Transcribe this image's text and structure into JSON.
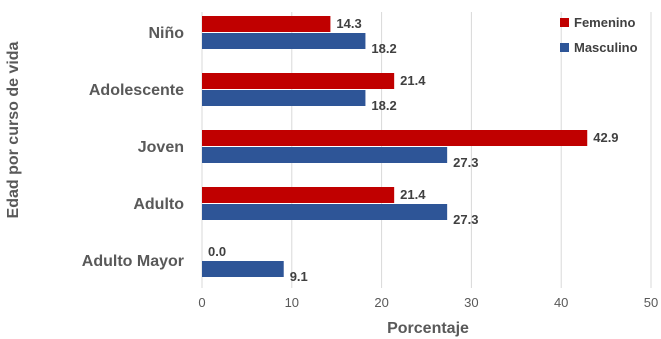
{
  "chart_data": {
    "type": "bar",
    "orientation": "horizontal",
    "categories": [
      "Niño",
      "Adolescente",
      "Joven",
      "Adulto",
      "Adulto Mayor"
    ],
    "series": [
      {
        "name": "Femenino",
        "color": "#C00000",
        "values": [
          14.3,
          21.4,
          42.9,
          21.4,
          0.0
        ]
      },
      {
        "name": "Masculino",
        "color": "#2E5597",
        "values": [
          18.2,
          18.2,
          27.3,
          27.3,
          9.1
        ]
      }
    ],
    "value_labels": {
      "Femenino": [
        "14.3",
        "21.4",
        "42.9",
        "21.4",
        "0.0"
      ],
      "Masculino": [
        "18.2",
        "18.2",
        "27.3",
        "27.3",
        "9.1"
      ]
    },
    "xlabel": "Porcentaje",
    "ylabel": "Edad por curso de vida",
    "xlim": [
      0,
      50
    ],
    "xticks": [
      "0",
      "10",
      "20",
      "30",
      "40",
      "50"
    ],
    "grid": "vertical",
    "legend": "top-right"
  }
}
